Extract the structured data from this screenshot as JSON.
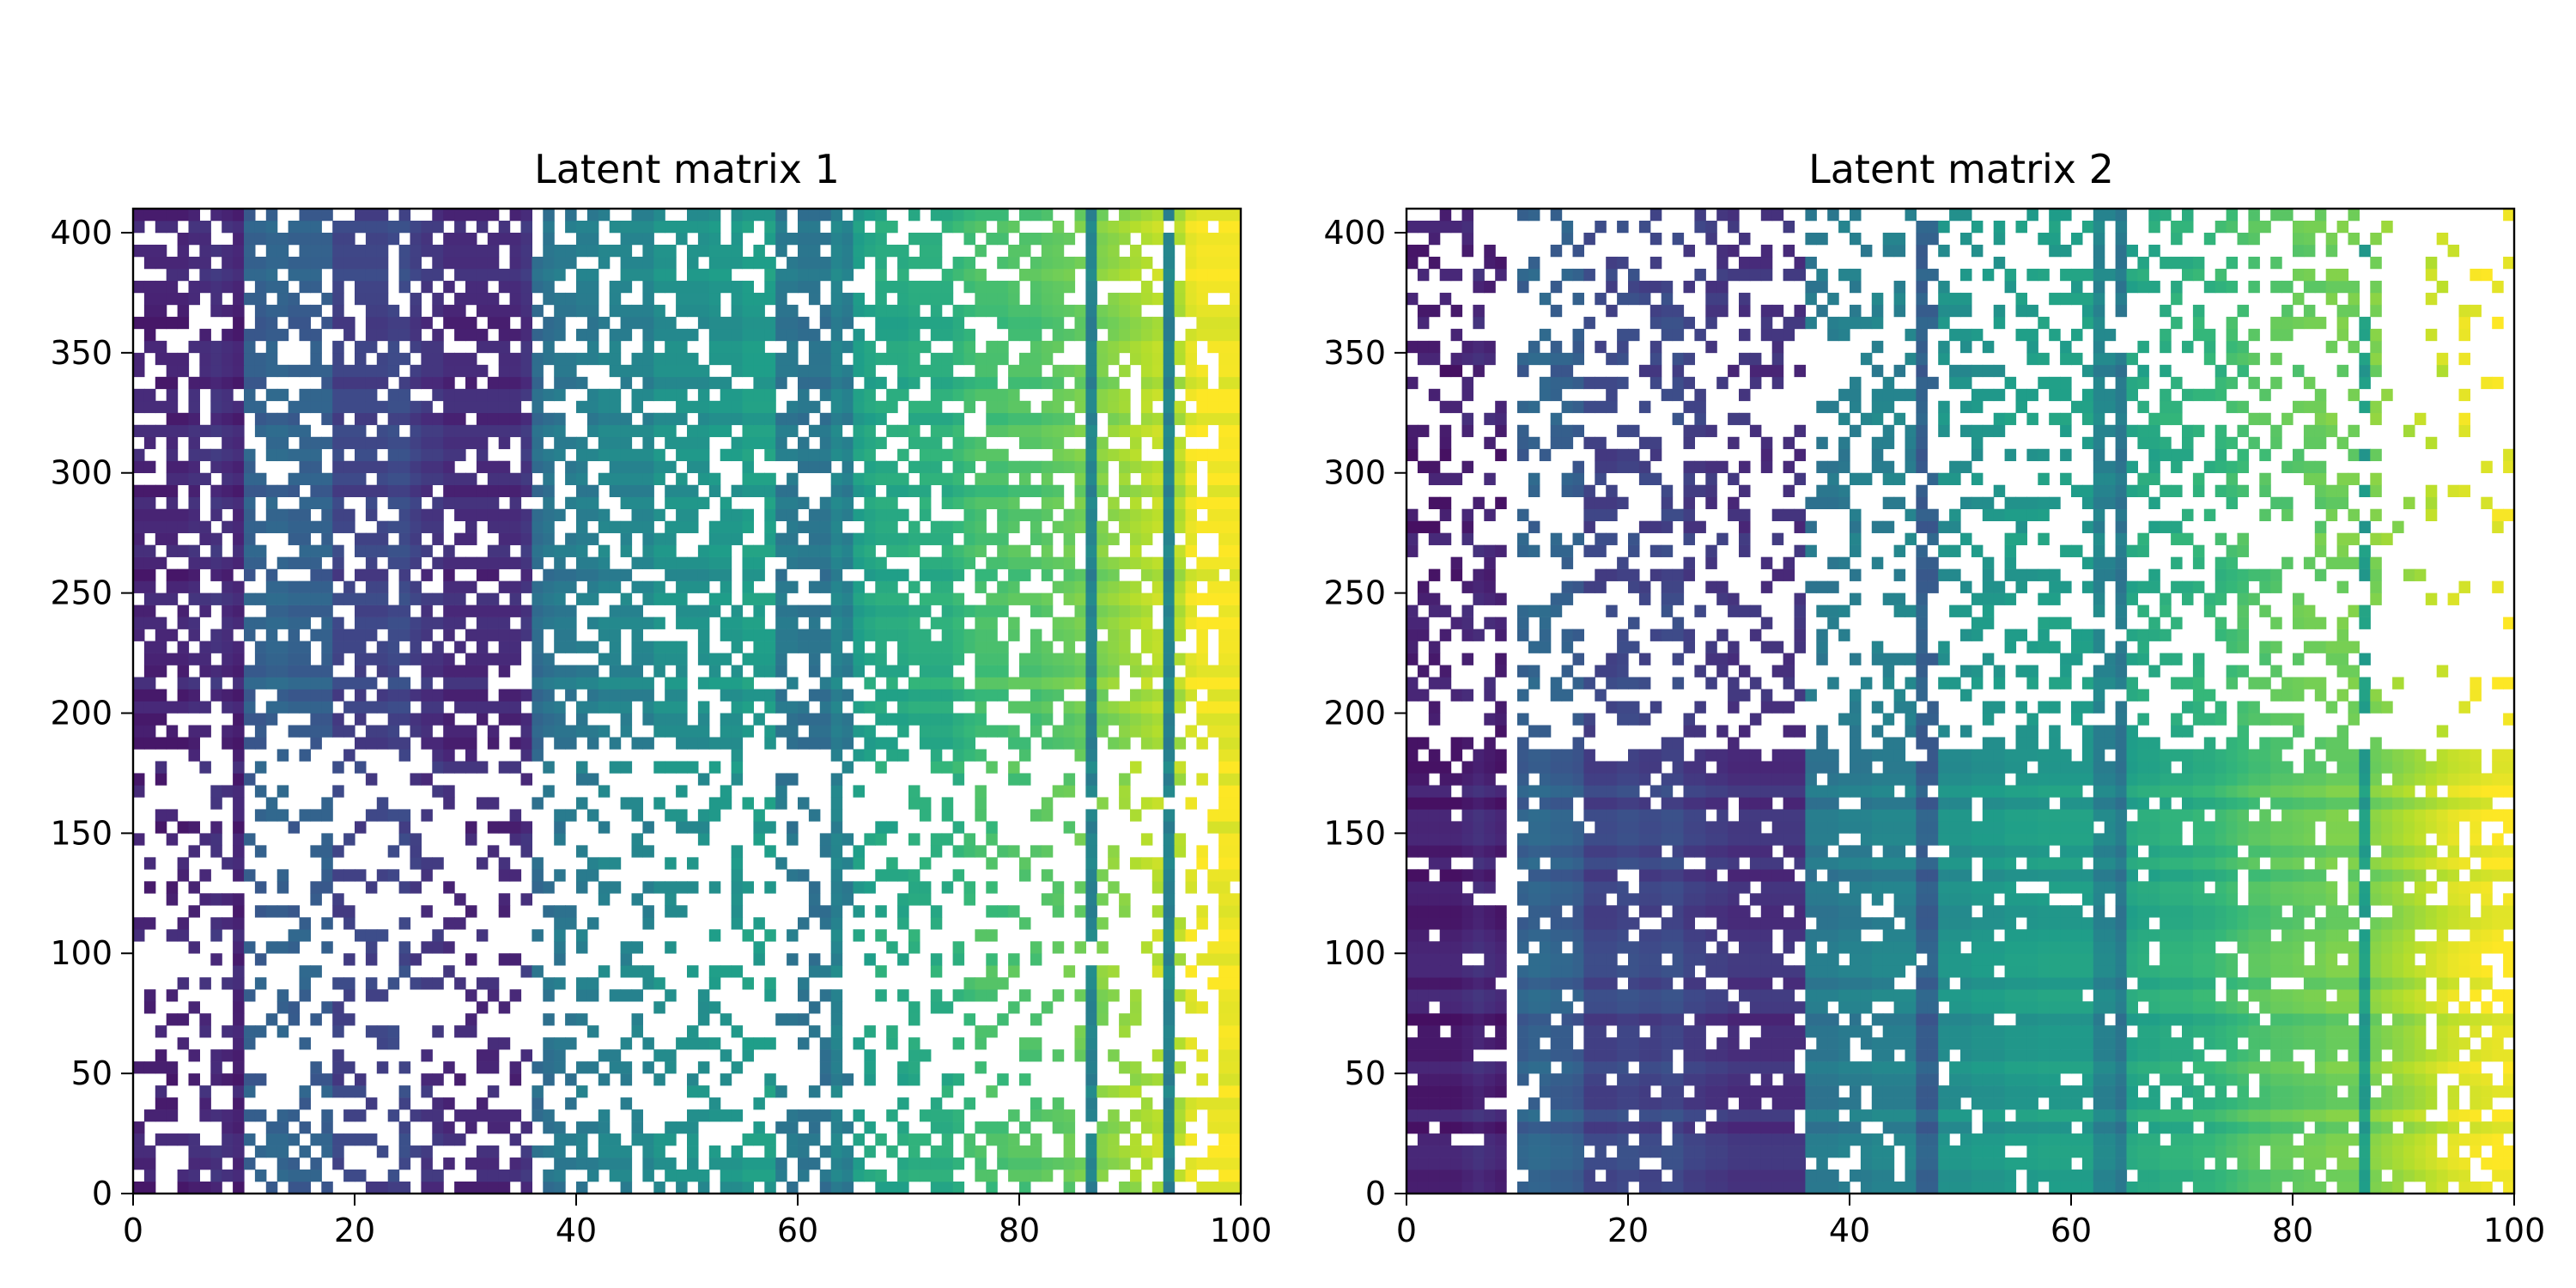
{
  "chart_data": [
    {
      "type": "heatmap",
      "title": "Latent matrix 1",
      "xlabel": "",
      "ylabel": "",
      "xlim": [
        0,
        100
      ],
      "ylim": [
        0,
        410
      ],
      "x_ticks": [
        0,
        20,
        40,
        60,
        80,
        100
      ],
      "y_ticks": [
        0,
        50,
        100,
        150,
        200,
        250,
        300,
        350,
        400
      ],
      "colormap": "viridis",
      "value_range": [
        0,
        1
      ],
      "description_of_pattern": "Column values rise left-to-right (purple to yellow); many cells missing",
      "column_value_profile": [
        0.1,
        0.1,
        0.1,
        0.1,
        0.1,
        0.12,
        0.12,
        0.14,
        0.12,
        0.1,
        0.3,
        0.3,
        0.32,
        0.32,
        0.3,
        0.3,
        0.3,
        0.3,
        0.2,
        0.2,
        0.2,
        0.2,
        0.2,
        0.22,
        0.22,
        0.18,
        0.15,
        0.15,
        0.12,
        0.12,
        0.12,
        0.12,
        0.12,
        0.12,
        0.12,
        0.15,
        0.35,
        0.38,
        0.4,
        0.4,
        0.42,
        0.42,
        0.45,
        0.45,
        0.45,
        0.45,
        0.45,
        0.5,
        0.5,
        0.5,
        0.5,
        0.5,
        0.52,
        0.52,
        0.52,
        0.55,
        0.55,
        0.55,
        0.4,
        0.4,
        0.38,
        0.38,
        0.38,
        0.45,
        0.42,
        0.55,
        0.58,
        0.6,
        0.6,
        0.6,
        0.62,
        0.62,
        0.62,
        0.62,
        0.65,
        0.68,
        0.7,
        0.7,
        0.7,
        0.72,
        0.72,
        0.72,
        0.74,
        0.75,
        0.76,
        0.78,
        0.45,
        0.8,
        0.82,
        0.84,
        0.86,
        0.88,
        0.9,
        0.45,
        0.88,
        0.96,
        0.98,
        0.98,
        0.98,
        0.98
      ],
      "band_boundaries_y": [
        0,
        33,
        185,
        410
      ]
    },
    {
      "type": "heatmap",
      "title": "Latent matrix 2",
      "xlabel": "",
      "ylabel": "",
      "xlim": [
        0,
        100
      ],
      "ylim": [
        0,
        410
      ],
      "x_ticks": [
        0,
        20,
        40,
        60,
        80,
        100
      ],
      "y_ticks": [
        0,
        50,
        100,
        150,
        200,
        250,
        300,
        350,
        400
      ],
      "colormap": "viridis",
      "value_range": [
        0,
        1
      ],
      "description_of_pattern": "Dense block below y≈185; sparse above; rightmost columns mostly empty",
      "column_value_profile": [
        0.08,
        0.08,
        0.08,
        0.08,
        0.08,
        0.1,
        0.12,
        0.1,
        0.08,
        0.08,
        0.3,
        0.32,
        0.32,
        0.3,
        0.3,
        0.28,
        0.2,
        0.2,
        0.2,
        0.22,
        0.22,
        0.2,
        0.2,
        0.22,
        0.22,
        0.18,
        0.18,
        0.16,
        0.16,
        0.14,
        0.14,
        0.14,
        0.14,
        0.14,
        0.14,
        0.14,
        0.4,
        0.4,
        0.4,
        0.42,
        0.42,
        0.42,
        0.44,
        0.44,
        0.44,
        0.44,
        0.3,
        0.3,
        0.5,
        0.5,
        0.5,
        0.52,
        0.52,
        0.52,
        0.54,
        0.54,
        0.54,
        0.55,
        0.55,
        0.55,
        0.55,
        0.55,
        0.45,
        0.45,
        0.4,
        0.58,
        0.6,
        0.6,
        0.62,
        0.62,
        0.62,
        0.64,
        0.64,
        0.66,
        0.68,
        0.7,
        0.72,
        0.72,
        0.74,
        0.74,
        0.75,
        0.76,
        0.76,
        0.78,
        0.78,
        0.78,
        0.55,
        0.8,
        0.82,
        0.84,
        0.86,
        0.88,
        0.9,
        0.92,
        0.94,
        0.95,
        0.96,
        0.97,
        0.98,
        0.98
      ]
    }
  ]
}
